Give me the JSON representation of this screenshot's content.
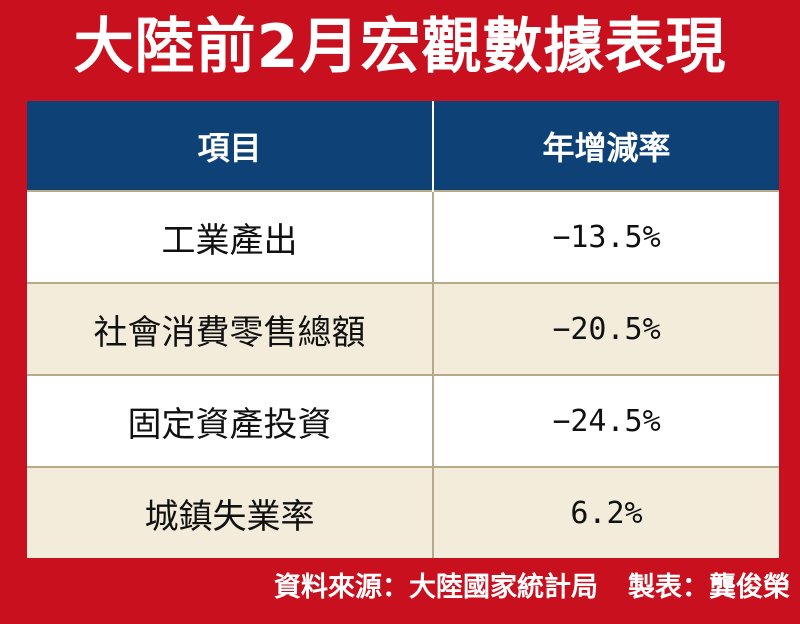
{
  "title": "大陸前2月宏觀數據表現",
  "table": {
    "headers": [
      "項目",
      "年增減率"
    ],
    "rows": [
      {
        "item": "工業產出",
        "value": "−13.5%"
      },
      {
        "item": "社會消費零售總額",
        "value": "−20.5%"
      },
      {
        "item": "固定資產投資",
        "value": "−24.5%"
      },
      {
        "item": "城鎮失業率",
        "value": "6.2%"
      }
    ]
  },
  "footer": {
    "source": "資料來源：大陸國家統計局",
    "maker": "製表：龔俊榮"
  }
}
